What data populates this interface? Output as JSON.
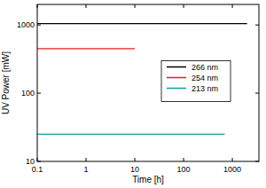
{
  "chart_data": {
    "type": "line",
    "log": true,
    "x_label": "Time [h]",
    "y_label": "UV Power [mW]",
    "xlim": [
      0.1,
      3500
    ],
    "ylim": [
      10,
      2000
    ],
    "xticks": [
      0.1,
      1,
      10,
      100,
      1000
    ],
    "yticks": [
      10,
      100,
      1000
    ],
    "legend": "right",
    "series": [
      {
        "name": "266 nm",
        "color": "#000000",
        "x": [
          0.1,
          2000
        ],
        "values": [
          1050,
          1050
        ]
      },
      {
        "name": "254 nm",
        "color": "#e3231b",
        "x": [
          0.1,
          10
        ],
        "values": [
          450,
          450
        ]
      },
      {
        "name": "213 nm",
        "color": "#1b9a9a",
        "x": [
          0.1,
          700
        ],
        "values": [
          25,
          25
        ]
      }
    ]
  }
}
